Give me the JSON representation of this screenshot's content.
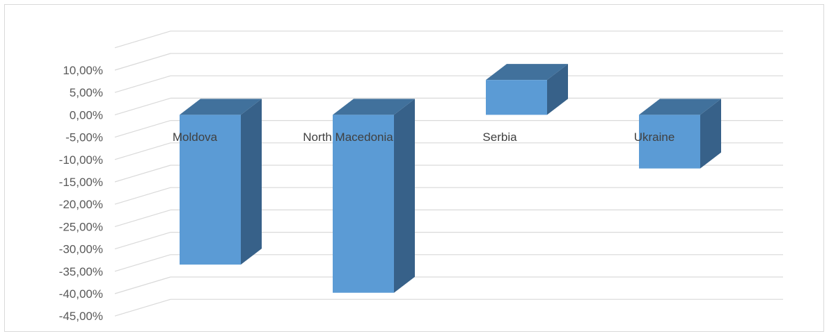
{
  "chart_data": {
    "type": "bar",
    "style": "3d-column",
    "categories": [
      "Moldova",
      "North Macedonia",
      "Serbia",
      "Ukraine"
    ],
    "values": [
      -33.5,
      -39.8,
      7.8,
      -12.0
    ],
    "ylim": [
      -45,
      10
    ],
    "ytick_step": 5,
    "ytick_labels": [
      "10,00%",
      "5,00%",
      "0,00%",
      "-5,00%",
      "-10,00%",
      "-15,00%",
      "-20,00%",
      "-25,00%",
      "-30,00%",
      "-35,00%",
      "-40,00%",
      "-45,00%"
    ],
    "title": "",
    "xlabel": "",
    "ylabel": "",
    "grid": true,
    "legend": "none",
    "colors": {
      "bar_front": "#5b9bd5",
      "bar_top": "#41719c",
      "bar_side": "#376189",
      "grid": "#d9d9d9",
      "tick_text": "#595959",
      "category_text": "#404040"
    }
  }
}
